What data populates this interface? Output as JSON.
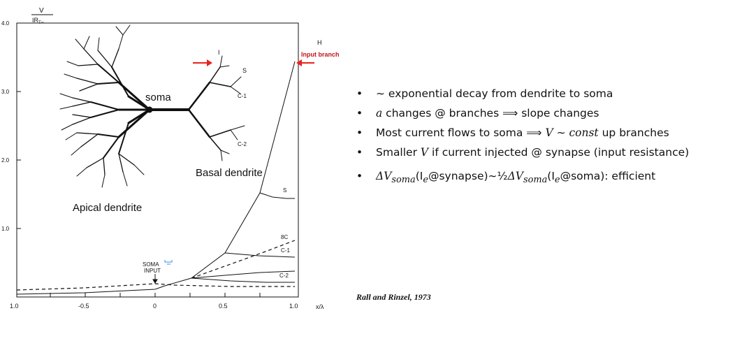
{
  "figure": {
    "y_axis_label_top": "V",
    "y_axis_label_bottom": "IR",
    "y_axis_label_sub": "T∞",
    "y_ticks": [
      "4.0",
      "3.0",
      "2.0",
      "1.0"
    ],
    "x_ticks": [
      "1.0",
      "-0.5",
      "0",
      "0.5",
      "1.0"
    ],
    "x_axis_label": "x/λ",
    "labels": {
      "soma": "soma",
      "apical": "Apical dendrite",
      "basal": "Basal dendrite",
      "input_branch": "Input branch",
      "I": "I",
      "S": "S",
      "C1": "C-1",
      "C2": "C-2",
      "H": "H",
      "curve_S": "S",
      "curve_8C": "8C",
      "curve_C1": "C-1",
      "curve_C2": "C-2",
      "soma_input_1": "SOMA",
      "soma_input_2": "INPUT"
    },
    "colors": {
      "arrow": "#e8231d",
      "ink": "#111111",
      "input_label": "#c0171b",
      "cursor_icon": "#3a8ee6"
    }
  },
  "bullets": [
    {
      "prefix": "∼",
      "text": " exponential decay from dendrite to soma"
    },
    {
      "prefix": "a",
      "text": " changes @ branches ⟹ slope changes"
    },
    {
      "text1": "Most current flows to soma ⟹ ",
      "V": "V",
      "tilde": " ∼ ",
      "const": "const",
      "text2": " up branches"
    },
    {
      "text1": "Smaller ",
      "V": "V",
      "text2": " if current injected @ synapse (input resistance)"
    },
    {
      "text": "ΔV",
      "sub1": "soma",
      "text2": "(I",
      "sub2": "e",
      "text3": "@synapse)∼",
      "frac": "½",
      "text4": "ΔV",
      "sub3": "soma",
      "text5": "(I",
      "sub4": "e",
      "text6": "@soma): efficient"
    }
  ],
  "citation": "Rall and Rinzel, 1973"
}
